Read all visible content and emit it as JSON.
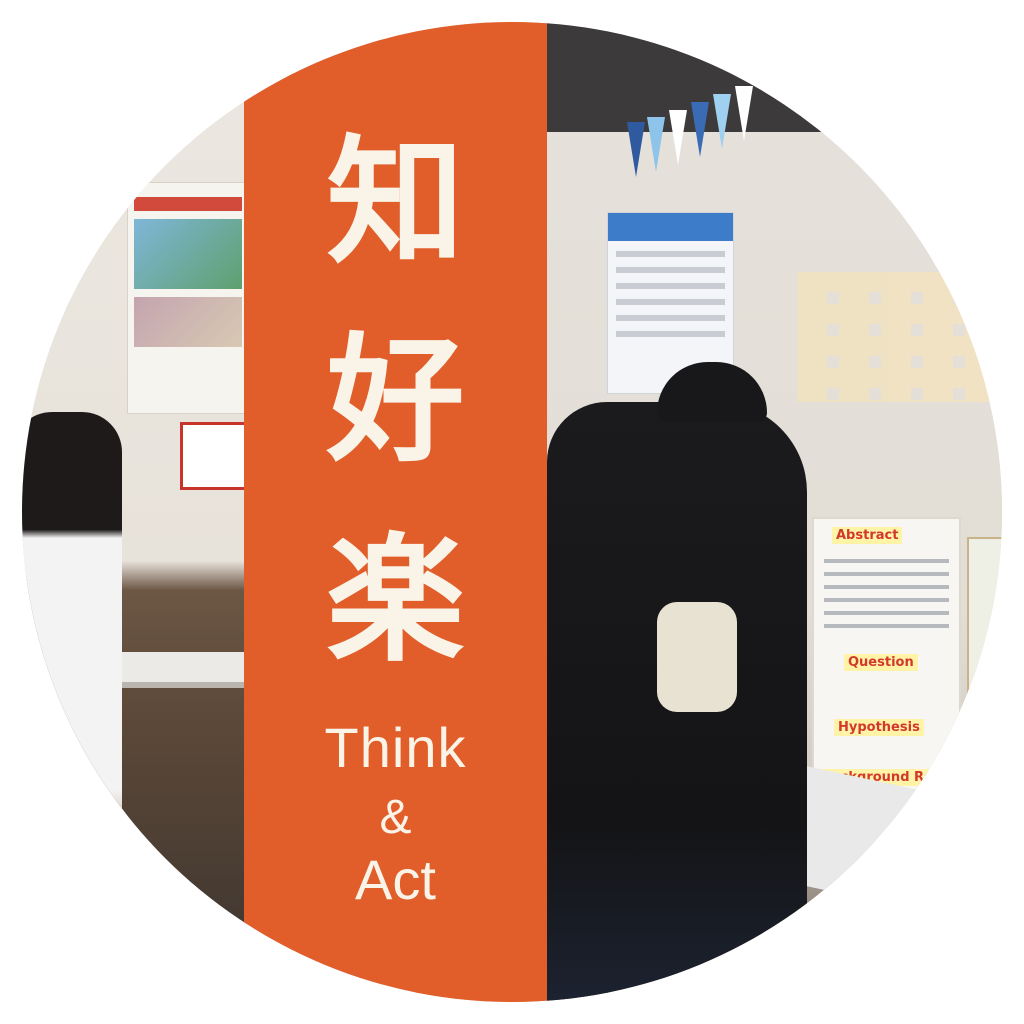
{
  "banner": {
    "kanji": [
      "知",
      "好",
      "楽"
    ],
    "tagline": {
      "think": "Think",
      "amp": "&",
      "act": "Act"
    },
    "color": "#e15e2b",
    "text_color": "#faf4e8"
  },
  "scene": {
    "board_labels": {
      "abstract": "Abstract",
      "question": "Question",
      "hypothesis": "Hypothesis",
      "background": "Background Rese"
    }
  }
}
